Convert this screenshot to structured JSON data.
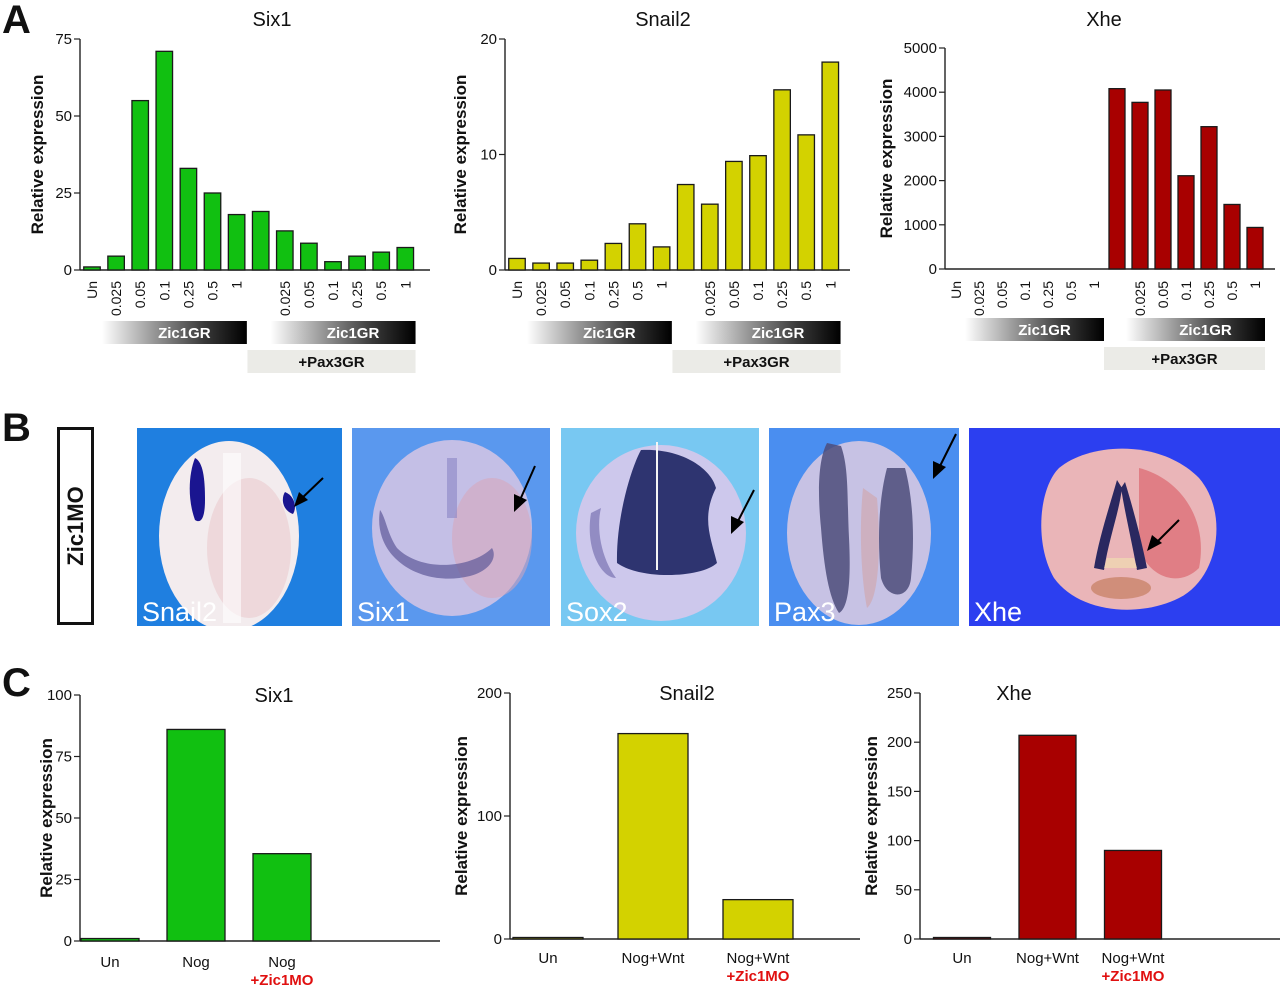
{
  "panels": {
    "A": "A",
    "B": "B",
    "C": "C"
  },
  "colors": {
    "green": "#11c011",
    "yellow": "#d3d200",
    "red": "#a80000",
    "zic1mo_red": "#e01010",
    "pax3_box": "#ebebe7"
  },
  "panel_b": {
    "condition_label": "Zic1MO",
    "photos": [
      {
        "label": "Snail2",
        "bg": "#1f7fe0"
      },
      {
        "label": "Six1",
        "bg": "#5a98ee"
      },
      {
        "label": "Sox2",
        "bg": "#78c8f2"
      },
      {
        "label": "Pax3",
        "bg": "#4a8ef0"
      },
      {
        "label": "Xhe",
        "bg": "#2c3ff0"
      }
    ]
  },
  "chart_data": [
    {
      "id": "A-six1",
      "type": "bar",
      "title": "Six1",
      "xlabel": "",
      "ylabel": "Relative expression",
      "ylim": [
        0,
        75
      ],
      "yticks": [
        0,
        25,
        50,
        75
      ],
      "color": "#11c011",
      "categories": [
        "Un",
        "0.025",
        "0.05",
        "0.1",
        "0.25",
        "0.5",
        "1",
        "",
        "0.025",
        "0.05",
        "0.1",
        "0.25",
        "0.5",
        "1"
      ],
      "values": [
        1,
        4.5,
        55,
        71,
        33,
        25,
        18,
        19,
        12.7,
        8.7,
        2.7,
        4.5,
        5.8,
        7.3
      ],
      "group_labels": {
        "zic1gr": "Zic1GR",
        "pax3gr": "+Pax3GR"
      }
    },
    {
      "id": "A-snail2",
      "type": "bar",
      "title": "Snail2",
      "xlabel": "",
      "ylabel": "Relative expression",
      "ylim": [
        0,
        20
      ],
      "yticks": [
        0,
        10,
        20
      ],
      "color": "#d3d200",
      "categories": [
        "Un",
        "0.025",
        "0.05",
        "0.1",
        "0.25",
        "0.5",
        "1",
        "",
        "0.025",
        "0.05",
        "0.1",
        "0.25",
        "0.5",
        "1"
      ],
      "values": [
        1.0,
        0.6,
        0.6,
        0.85,
        2.3,
        4.0,
        2.0,
        7.4,
        5.7,
        9.4,
        9.9,
        15.6,
        11.7,
        18.0
      ],
      "group_labels": {
        "zic1gr": "Zic1GR",
        "pax3gr": "+Pax3GR"
      }
    },
    {
      "id": "A-xhe",
      "type": "bar",
      "title": "Xhe",
      "xlabel": "",
      "ylabel": "Relative expression",
      "ylim": [
        0,
        5000
      ],
      "yticks": [
        0,
        1000,
        2000,
        3000,
        4000,
        5000
      ],
      "color": "#a80000",
      "categories": [
        "Un",
        "0.025",
        "0.05",
        "0.1",
        "0.25",
        "0.5",
        "1",
        "",
        "0.025",
        "0.05",
        "0.1",
        "0.25",
        "0.5",
        "1"
      ],
      "values": [
        0,
        0,
        0,
        0,
        0,
        0,
        0,
        4080,
        3770,
        4050,
        2110,
        3220,
        1460,
        940
      ],
      "group_labels": {
        "zic1gr": "Zic1GR",
        "pax3gr": "+Pax3GR"
      }
    },
    {
      "id": "C-six1",
      "type": "bar",
      "title": "Six1",
      "xlabel": "",
      "ylabel": "Relative expression",
      "ylim": [
        0,
        100
      ],
      "yticks": [
        0,
        25,
        50,
        75,
        100
      ],
      "color": "#11c011",
      "categories": [
        "Un",
        "Nog",
        "Nog"
      ],
      "category_sublabels": [
        "",
        "",
        "+Zic1MO"
      ],
      "values": [
        1,
        86,
        35.5
      ]
    },
    {
      "id": "C-snail2",
      "type": "bar",
      "title": "Snail2",
      "xlabel": "",
      "ylabel": "Relative expression",
      "ylim": [
        0,
        200
      ],
      "yticks": [
        0,
        100,
        200
      ],
      "color": "#d3d200",
      "categories": [
        "Un",
        "Nog+Wnt",
        "Nog+Wnt"
      ],
      "category_sublabels": [
        "",
        "",
        "+Zic1MO"
      ],
      "values": [
        1,
        167,
        32
      ]
    },
    {
      "id": "C-xhe",
      "type": "bar",
      "title": "Xhe",
      "xlabel": "",
      "ylabel": "Relative expression",
      "ylim": [
        0,
        250
      ],
      "yticks": [
        0,
        50,
        100,
        150,
        200,
        250
      ],
      "color": "#a80000",
      "categories": [
        "Un",
        "Nog+Wnt",
        "Nog+Wnt"
      ],
      "category_sublabels": [
        "",
        "",
        "+Zic1MO"
      ],
      "values": [
        1,
        207,
        90
      ]
    }
  ]
}
